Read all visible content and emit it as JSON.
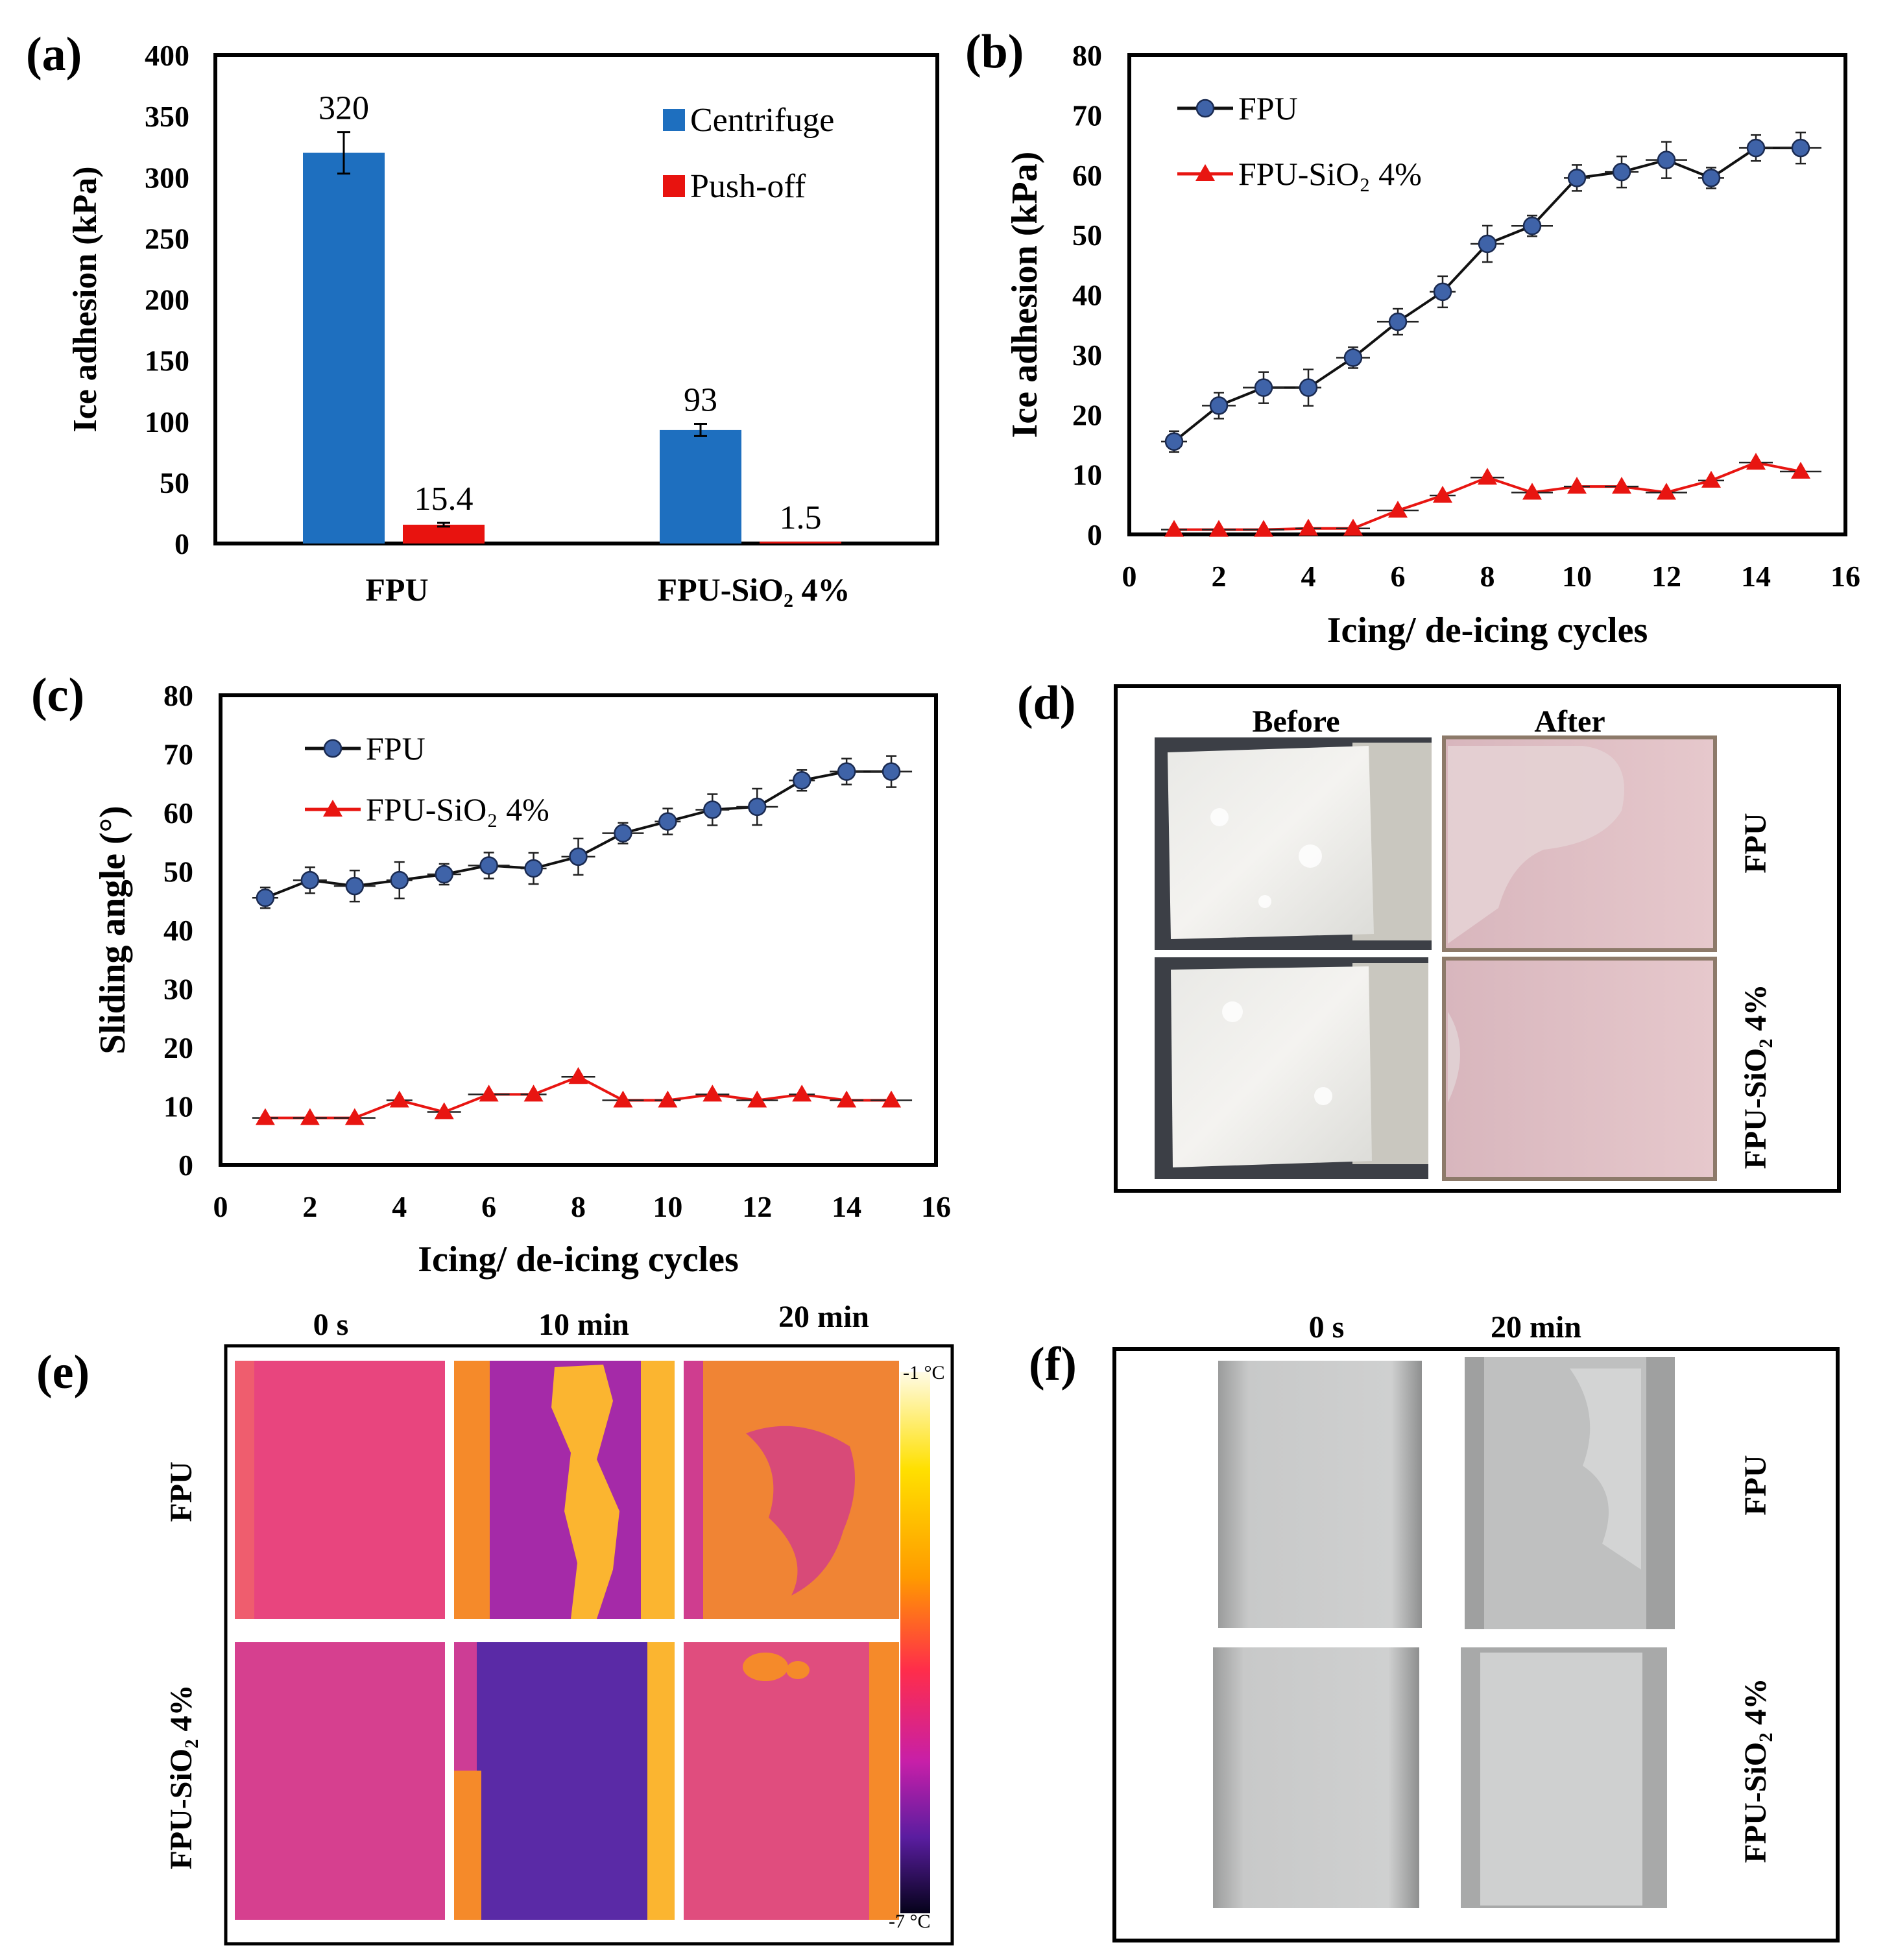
{
  "panels": {
    "a": {
      "label": "(a)"
    },
    "b": {
      "label": "(b)"
    },
    "c": {
      "label": "(c)"
    },
    "d": {
      "label": "(d)",
      "col_before": "Before",
      "col_after": "After",
      "row_fpu": "FPU",
      "row_sio2": "FPU-SiO₂ 4%"
    },
    "e": {
      "label": "(e)",
      "col_0": "0 s",
      "col_10": "10 min",
      "col_20": "20 min",
      "row_fpu": "FPU",
      "row_sio2": "FPU-SiO₂ 4%",
      "scale_max": "-1 °C",
      "scale_min": "-7 °C"
    },
    "f": {
      "label": "(f)",
      "col_0": "0 s",
      "col_20": "20 min",
      "row_fpu": "FPU",
      "row_sio2": "FPU-SiO₂ 4%"
    }
  },
  "colors": {
    "centrifuge": "#1e6fbf",
    "pushoff": "#e8130f",
    "fpu_marker": "#3f63a8",
    "sio2_marker": "#e81511"
  },
  "chart_data": [
    {
      "id": "a",
      "type": "bar",
      "title": "",
      "xlabel": "",
      "ylabel": "Ice adhesion (kPa)",
      "ylim": [
        0,
        400
      ],
      "yticks": [
        0,
        50,
        100,
        150,
        200,
        250,
        300,
        350,
        400
      ],
      "categories": [
        "FPU",
        "FPU-SiO₂ 4%"
      ],
      "legend_position": "top-right",
      "series": [
        {
          "name": "Centrifuge",
          "values": [
            320,
            93
          ],
          "value_labels": [
            "320",
            "93"
          ],
          "errors": [
            17,
            5
          ]
        },
        {
          "name": "Push-off",
          "values": [
            15.4,
            1.5
          ],
          "value_labels": [
            "15.4",
            "1.5"
          ],
          "errors": [
            1.5,
            0
          ]
        }
      ]
    },
    {
      "id": "b",
      "type": "line",
      "xlabel": "Icing/ de-icing cycles",
      "ylabel": "Ice adhesion (kPa)",
      "xlim": [
        0,
        16
      ],
      "ylim": [
        0,
        80
      ],
      "xticks": [
        0,
        2,
        4,
        6,
        8,
        10,
        12,
        14,
        16
      ],
      "yticks": [
        0,
        10,
        20,
        30,
        40,
        50,
        60,
        70,
        80
      ],
      "legend_position": "top-left",
      "x": [
        1,
        2,
        3,
        4,
        5,
        6,
        7,
        8,
        9,
        10,
        11,
        12,
        13,
        14,
        15
      ],
      "series": [
        {
          "name": "FPU",
          "marker": "circle",
          "values": [
            15.5,
            21.5,
            24.5,
            24.5,
            29.5,
            35.5,
            40.5,
            48.5,
            51.5,
            59.5,
            60.5,
            62.5,
            59.5,
            64.5,
            64.5
          ],
          "yerr": 0.3,
          "xerr": 0
        },
        {
          "name": "FPU-SiO₂ 4%",
          "marker": "triangle",
          "values": [
            0.8,
            0.8,
            0.8,
            1,
            1,
            4,
            6.5,
            9.5,
            7,
            8,
            8,
            7,
            9,
            12,
            10.5
          ],
          "yerr": 0.1,
          "xerr": 0
        }
      ]
    },
    {
      "id": "c",
      "type": "line",
      "xlabel": "Icing/ de-icing cycles",
      "ylabel": "Sliding angle (°)",
      "xlim": [
        0,
        16
      ],
      "ylim": [
        0,
        80
      ],
      "xticks": [
        0,
        2,
        4,
        6,
        8,
        10,
        12,
        14,
        16
      ],
      "yticks": [
        0,
        10,
        20,
        30,
        40,
        50,
        60,
        70,
        80
      ],
      "legend_position": "top-left",
      "x": [
        1,
        2,
        3,
        4,
        5,
        6,
        7,
        8,
        9,
        10,
        11,
        12,
        13,
        14,
        15
      ],
      "series": [
        {
          "name": "FPU",
          "marker": "circle",
          "values": [
            45.5,
            48.5,
            47.5,
            48.5,
            49.5,
            51,
            50.5,
            52.5,
            56.5,
            58.5,
            60.5,
            61,
            65.5,
            67,
            67
          ],
          "yerr": 0.3,
          "xerr": 0
        },
        {
          "name": "FPU-SiO₂ 4%",
          "marker": "triangle",
          "values": [
            8,
            8,
            8,
            11,
            9,
            12,
            12,
            15,
            11,
            11,
            12,
            11,
            12,
            11,
            11
          ],
          "yerr": 0.1,
          "xerr": 0
        }
      ]
    }
  ]
}
